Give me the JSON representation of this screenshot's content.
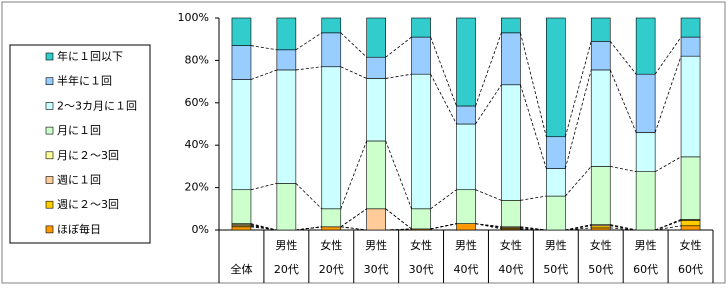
{
  "chart_data": {
    "type": "stacked_bar_100",
    "categories": [
      [
        "全体"
      ],
      [
        "男性",
        "20代"
      ],
      [
        "女性",
        "20代"
      ],
      [
        "男性",
        "30代"
      ],
      [
        "女性",
        "30代"
      ],
      [
        "男性",
        "40代"
      ],
      [
        "女性",
        "40代"
      ],
      [
        "男性",
        "50代"
      ],
      [
        "女性",
        "50代"
      ],
      [
        "男性",
        "60代"
      ],
      [
        "女性",
        "60代"
      ]
    ],
    "series": [
      {
        "name": "ほぼ毎日",
        "color": "#ff9900",
        "values": [
          1.5,
          0,
          1.5,
          0,
          0.5,
          3,
          0.5,
          0,
          1,
          0,
          2
        ]
      },
      {
        "name": "週に２～3回",
        "color": "#ffcc00",
        "values": [
          0.5,
          0,
          0,
          0,
          0,
          0,
          0.5,
          0,
          1,
          0,
          2.5
        ]
      },
      {
        "name": "週に１回",
        "color": "#ffcc99",
        "values": [
          0.5,
          0,
          0,
          10,
          0,
          0,
          0.5,
          0,
          0.5,
          0,
          0
        ]
      },
      {
        "name": "月に２～3回",
        "color": "#ffff99",
        "values": [
          0.5,
          0,
          0,
          0,
          0,
          0,
          0,
          0,
          0,
          0,
          0.5
        ]
      },
      {
        "name": "月に１回",
        "color": "#ccffcc",
        "values": [
          16,
          22,
          8.5,
          32,
          9.5,
          16,
          12.5,
          16,
          27.5,
          27.5,
          29.5
        ]
      },
      {
        "name": "2～3カ月に１回",
        "color": "#ccffff",
        "values": [
          52,
          53.5,
          67,
          29.5,
          63.5,
          31,
          54.5,
          13,
          45.5,
          18.5,
          47.5
        ]
      },
      {
        "name": "半年に１回",
        "color": "#99ccff",
        "values": [
          16,
          9.5,
          16,
          10,
          17.5,
          8.5,
          24.5,
          15,
          13.5,
          27.5,
          9
        ]
      },
      {
        "name": "年に１回以下",
        "color": "#33cccc",
        "values": [
          13,
          15,
          7,
          18.5,
          9,
          41.5,
          7,
          56,
          11,
          26.5,
          9
        ]
      }
    ],
    "ylim": [
      0,
      100
    ],
    "yticks": [
      {
        "value": 0,
        "label": "0%"
      },
      {
        "value": 20,
        "label": "20%"
      },
      {
        "value": 40,
        "label": "40%"
      },
      {
        "value": 60,
        "label": "60%"
      },
      {
        "value": 80,
        "label": "80%"
      },
      {
        "value": 100,
        "label": "100%"
      }
    ],
    "series_lines": true,
    "legend": "left"
  }
}
